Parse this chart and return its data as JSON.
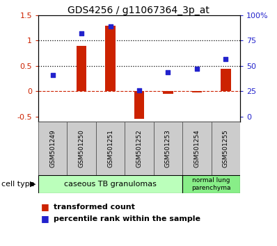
{
  "title": "GDS4256 / g11067364_3p_at",
  "samples": [
    "GSM501249",
    "GSM501250",
    "GSM501251",
    "GSM501252",
    "GSM501253",
    "GSM501254",
    "GSM501255"
  ],
  "transformed_count": [
    0.0,
    0.9,
    1.3,
    -0.55,
    -0.05,
    -0.02,
    0.45
  ],
  "percentile_rank_left": [
    0.32,
    1.15,
    1.28,
    0.02,
    0.38,
    0.44,
    0.64
  ],
  "bar_color": "#cc2200",
  "dot_color": "#2222cc",
  "ylim_left": [
    -0.6,
    1.5
  ],
  "left_yticks": [
    -0.5,
    0.0,
    0.5,
    1.0,
    1.5
  ],
  "left_yticklabels": [
    "-0.5",
    "0",
    "0.5",
    "1",
    "1.5"
  ],
  "right_yticks_pos": [
    -0.5,
    0.0,
    0.5,
    1.0,
    1.5
  ],
  "right_yticklabels": [
    "0",
    "25",
    "50",
    "75",
    "100%"
  ],
  "hline_zero_color": "#cc2200",
  "hline_half_color": "#000000",
  "hline_one_color": "#000000",
  "group1_label": "caseous TB granulomas",
  "group1_color": "#bbffbb",
  "group1_n": 5,
  "group2_label": "normal lung\nparenchyma",
  "group2_color": "#88ee88",
  "group2_n": 2,
  "cell_type_label": "cell type",
  "legend_color1": "#cc2200",
  "legend_label1": "transformed count",
  "legend_color2": "#2222cc",
  "legend_label2": "percentile rank within the sample",
  "sample_box_color": "#cccccc",
  "title_fontsize": 10
}
